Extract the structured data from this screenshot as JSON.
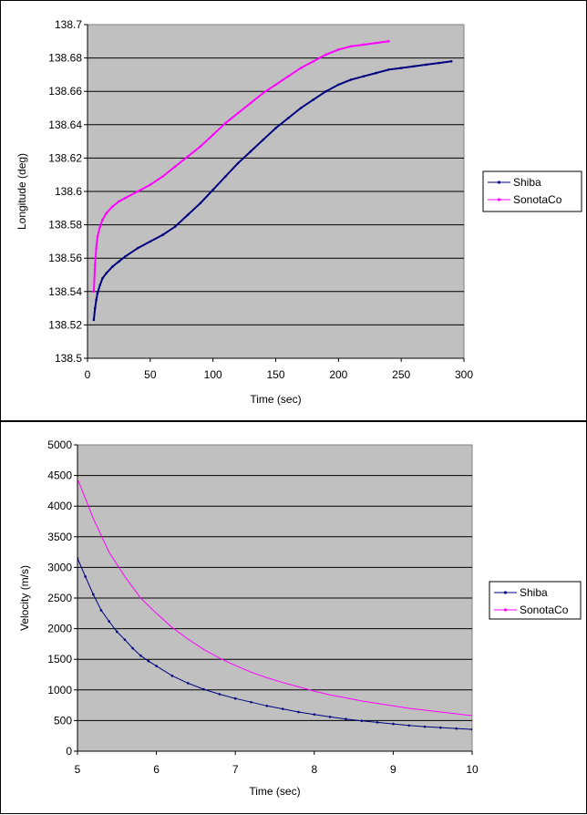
{
  "chart_data": [
    {
      "type": "line",
      "title": "",
      "xlabel": "Time (sec)",
      "ylabel": "Longitude (deg)",
      "xlim": [
        0,
        300
      ],
      "ylim": [
        138.5,
        138.7
      ],
      "x_ticks": [
        "0",
        "50",
        "100",
        "150",
        "200",
        "250",
        "300"
      ],
      "y_ticks": [
        "138.5",
        "138.52",
        "138.54",
        "138.56",
        "138.58",
        "138.6",
        "138.62",
        "138.64",
        "138.66",
        "138.68",
        "138.7"
      ],
      "grid": "horizontal",
      "plot_background": "#c0c0c0",
      "legend_position": "right",
      "series": [
        {
          "name": "Shiba",
          "color": "#000080",
          "marker": "dot",
          "x": [
            5,
            6,
            7,
            8,
            10,
            12,
            15,
            20,
            25,
            30,
            40,
            50,
            60,
            70,
            80,
            90,
            100,
            110,
            120,
            130,
            140,
            150,
            160,
            170,
            180,
            190,
            200,
            210,
            220,
            230,
            240,
            250,
            260,
            270,
            280,
            290
          ],
          "y": [
            138.523,
            138.53,
            138.535,
            138.539,
            138.544,
            138.548,
            138.551,
            138.555,
            138.558,
            138.561,
            138.566,
            138.57,
            138.574,
            138.579,
            138.586,
            138.593,
            138.601,
            138.609,
            138.617,
            138.624,
            138.631,
            138.638,
            138.644,
            138.65,
            138.655,
            138.66,
            138.664,
            138.667,
            138.669,
            138.671,
            138.673,
            138.674,
            138.675,
            138.676,
            138.677,
            138.678
          ]
        },
        {
          "name": "SonotaCo",
          "color": "#ff00ff",
          "marker": "dot",
          "x": [
            5,
            6,
            7,
            8,
            10,
            12,
            15,
            20,
            25,
            30,
            40,
            50,
            60,
            70,
            80,
            90,
            100,
            110,
            120,
            130,
            140,
            150,
            160,
            170,
            180,
            190,
            200,
            210,
            220,
            230,
            240
          ],
          "y": [
            138.54,
            138.556,
            138.566,
            138.573,
            138.579,
            138.583,
            138.587,
            138.591,
            138.594,
            138.596,
            138.6,
            138.604,
            138.609,
            138.615,
            138.621,
            138.627,
            138.634,
            138.641,
            138.647,
            138.653,
            138.659,
            138.664,
            138.669,
            138.674,
            138.678,
            138.682,
            138.685,
            138.687,
            138.688,
            138.689,
            138.69
          ]
        }
      ]
    },
    {
      "type": "line",
      "title": "",
      "xlabel": "Time (sec)",
      "ylabel": "Velocity  (m/s)",
      "xlim": [
        5,
        10
      ],
      "ylim": [
        0,
        5000
      ],
      "x_ticks": [
        "5",
        "6",
        "7",
        "8",
        "9",
        "10"
      ],
      "y_ticks": [
        "0",
        "500",
        "1000",
        "1500",
        "2000",
        "2500",
        "3000",
        "3500",
        "4000",
        "4500",
        "5000"
      ],
      "grid": "horizontal",
      "plot_background": "#c0c0c0",
      "legend_position": "right",
      "series": [
        {
          "name": "Shiba",
          "color": "#000080",
          "marker": "dot",
          "x": [
            5.0,
            5.1,
            5.2,
            5.3,
            5.4,
            5.5,
            5.6,
            5.7,
            5.8,
            5.9,
            6.0,
            6.2,
            6.4,
            6.6,
            6.8,
            7.0,
            7.2,
            7.4,
            7.6,
            7.8,
            8.0,
            8.2,
            8.4,
            8.6,
            8.8,
            9.0,
            9.2,
            9.4,
            9.6,
            9.8,
            10.0
          ],
          "y": [
            3150,
            2850,
            2560,
            2300,
            2120,
            1950,
            1820,
            1680,
            1560,
            1470,
            1390,
            1230,
            1110,
            1010,
            930,
            860,
            800,
            740,
            690,
            640,
            600,
            560,
            525,
            495,
            470,
            445,
            420,
            400,
            385,
            370,
            355
          ]
        },
        {
          "name": "SonotaCo",
          "color": "#ff00ff",
          "marker": "none",
          "x": [
            5.0,
            5.2,
            5.4,
            5.6,
            5.8,
            6.0,
            6.2,
            6.4,
            6.6,
            6.8,
            7.0,
            7.2,
            7.4,
            7.6,
            7.8,
            8.0,
            8.2,
            8.4,
            8.6,
            8.8,
            9.0,
            9.2,
            9.4,
            9.6,
            9.8,
            10.0
          ],
          "y": [
            4450,
            3800,
            3250,
            2850,
            2500,
            2250,
            2020,
            1830,
            1660,
            1520,
            1400,
            1290,
            1200,
            1120,
            1050,
            980,
            920,
            870,
            820,
            780,
            740,
            700,
            670,
            640,
            610,
            580
          ]
        }
      ]
    }
  ]
}
